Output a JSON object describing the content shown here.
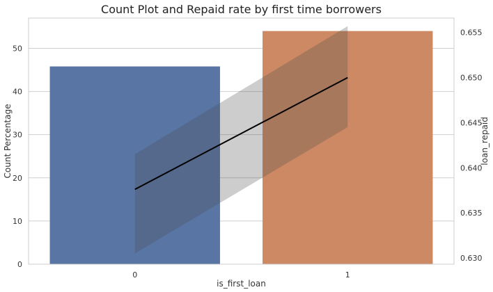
{
  "chart_data": {
    "type": "bar",
    "title": "Count Plot and Repaid rate by first time borrowers",
    "xlabel": "is_first_loan",
    "categories": [
      "0",
      "1"
    ],
    "series": [
      {
        "axis": "left",
        "type": "bar",
        "values": [
          45.8,
          54.0
        ],
        "colors": [
          "#5875a4",
          "#cc8963"
        ]
      },
      {
        "axis": "right",
        "type": "line",
        "values": [
          0.6376,
          0.65
        ],
        "ci_low": [
          0.6305,
          0.6445
        ],
        "ci_high": [
          0.6415,
          0.6557
        ],
        "color": "#000000",
        "ci_color": "#b0b0b0"
      }
    ],
    "y_left": {
      "label": "Count Percentage",
      "lim": [
        0,
        57
      ],
      "ticks": [
        0,
        10,
        20,
        30,
        40,
        50
      ]
    },
    "y_right": {
      "label": "loan_repaid",
      "lim": [
        0.6293,
        0.6566
      ],
      "ticks": [
        0.63,
        0.635,
        0.64,
        0.645,
        0.65,
        0.655
      ]
    },
    "grid": true
  }
}
